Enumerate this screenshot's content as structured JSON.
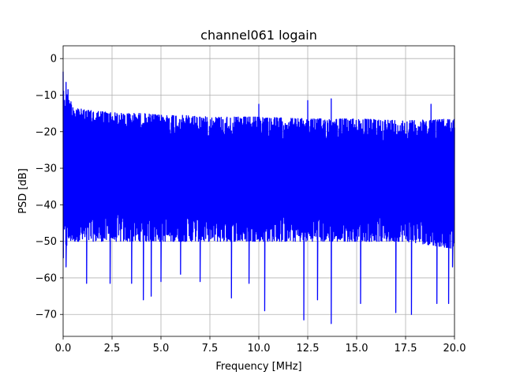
{
  "chart_data": {
    "type": "line",
    "title": "channel061 logain",
    "xlabel": "Frequency [MHz]",
    "ylabel": "PSD [dB]",
    "xlim": [
      0.0,
      20.0
    ],
    "ylim": [
      -76,
      3.5
    ],
    "xticks": [
      0.0,
      2.5,
      5.0,
      7.5,
      10.0,
      12.5,
      15.0,
      17.5,
      20.0
    ],
    "xtick_labels": [
      "0.0",
      "2.5",
      "5.0",
      "7.5",
      "10.0",
      "12.5",
      "15.0",
      "17.5",
      "20.0"
    ],
    "yticks": [
      0,
      -10,
      -20,
      -30,
      -40,
      -50,
      -60,
      -70
    ],
    "ytick_labels": [
      "0",
      "−10",
      "−20",
      "−30",
      "−40",
      "−50",
      "−60",
      "−70"
    ],
    "grid": true,
    "series": [
      {
        "color": "#0000ff",
        "envelope": {
          "x": [
            0.0,
            0.05,
            0.15,
            0.3,
            0.6,
            1.0,
            2.0,
            3.0,
            4.0,
            5.0,
            6.0,
            7.5,
            10.0,
            12.5,
            15.0,
            17.5,
            20.0
          ],
          "upper": [
            -1.0,
            -12,
            -9,
            -11,
            -13,
            -14,
            -14.5,
            -15,
            -15,
            -15.5,
            -15.5,
            -16,
            -16,
            -16.5,
            -16.5,
            -17,
            -16.5
          ],
          "lower": [
            -57,
            -50,
            -52,
            -50,
            -50,
            -50,
            -50,
            -50,
            -50,
            -50,
            -50,
            -50,
            -50,
            -50,
            -50,
            -50,
            -52
          ]
        },
        "peaks": [
          {
            "x": 0.15,
            "y": -6.5
          },
          {
            "x": 0.25,
            "y": -8.5
          },
          {
            "x": 10.0,
            "y": -12.5
          },
          {
            "x": 12.5,
            "y": -11.5
          },
          {
            "x": 13.7,
            "y": -11
          },
          {
            "x": 18.8,
            "y": -12.5
          }
        ],
        "dips": [
          {
            "x": 0.15,
            "y": -57
          },
          {
            "x": 1.2,
            "y": -61.5
          },
          {
            "x": 2.4,
            "y": -61.5
          },
          {
            "x": 3.5,
            "y": -61.5
          },
          {
            "x": 4.1,
            "y": -66
          },
          {
            "x": 4.5,
            "y": -65
          },
          {
            "x": 5.0,
            "y": -61
          },
          {
            "x": 6.0,
            "y": -59
          },
          {
            "x": 7.0,
            "y": -61
          },
          {
            "x": 8.6,
            "y": -65.5
          },
          {
            "x": 9.5,
            "y": -61.5
          },
          {
            "x": 10.3,
            "y": -69
          },
          {
            "x": 12.3,
            "y": -71.5
          },
          {
            "x": 13.0,
            "y": -66
          },
          {
            "x": 13.7,
            "y": -72.5
          },
          {
            "x": 15.2,
            "y": -67
          },
          {
            "x": 17.0,
            "y": -69.5
          },
          {
            "x": 17.8,
            "y": -70
          },
          {
            "x": 19.1,
            "y": -67
          },
          {
            "x": 19.7,
            "y": -67
          },
          {
            "x": 19.9,
            "y": -57
          }
        ]
      }
    ]
  }
}
